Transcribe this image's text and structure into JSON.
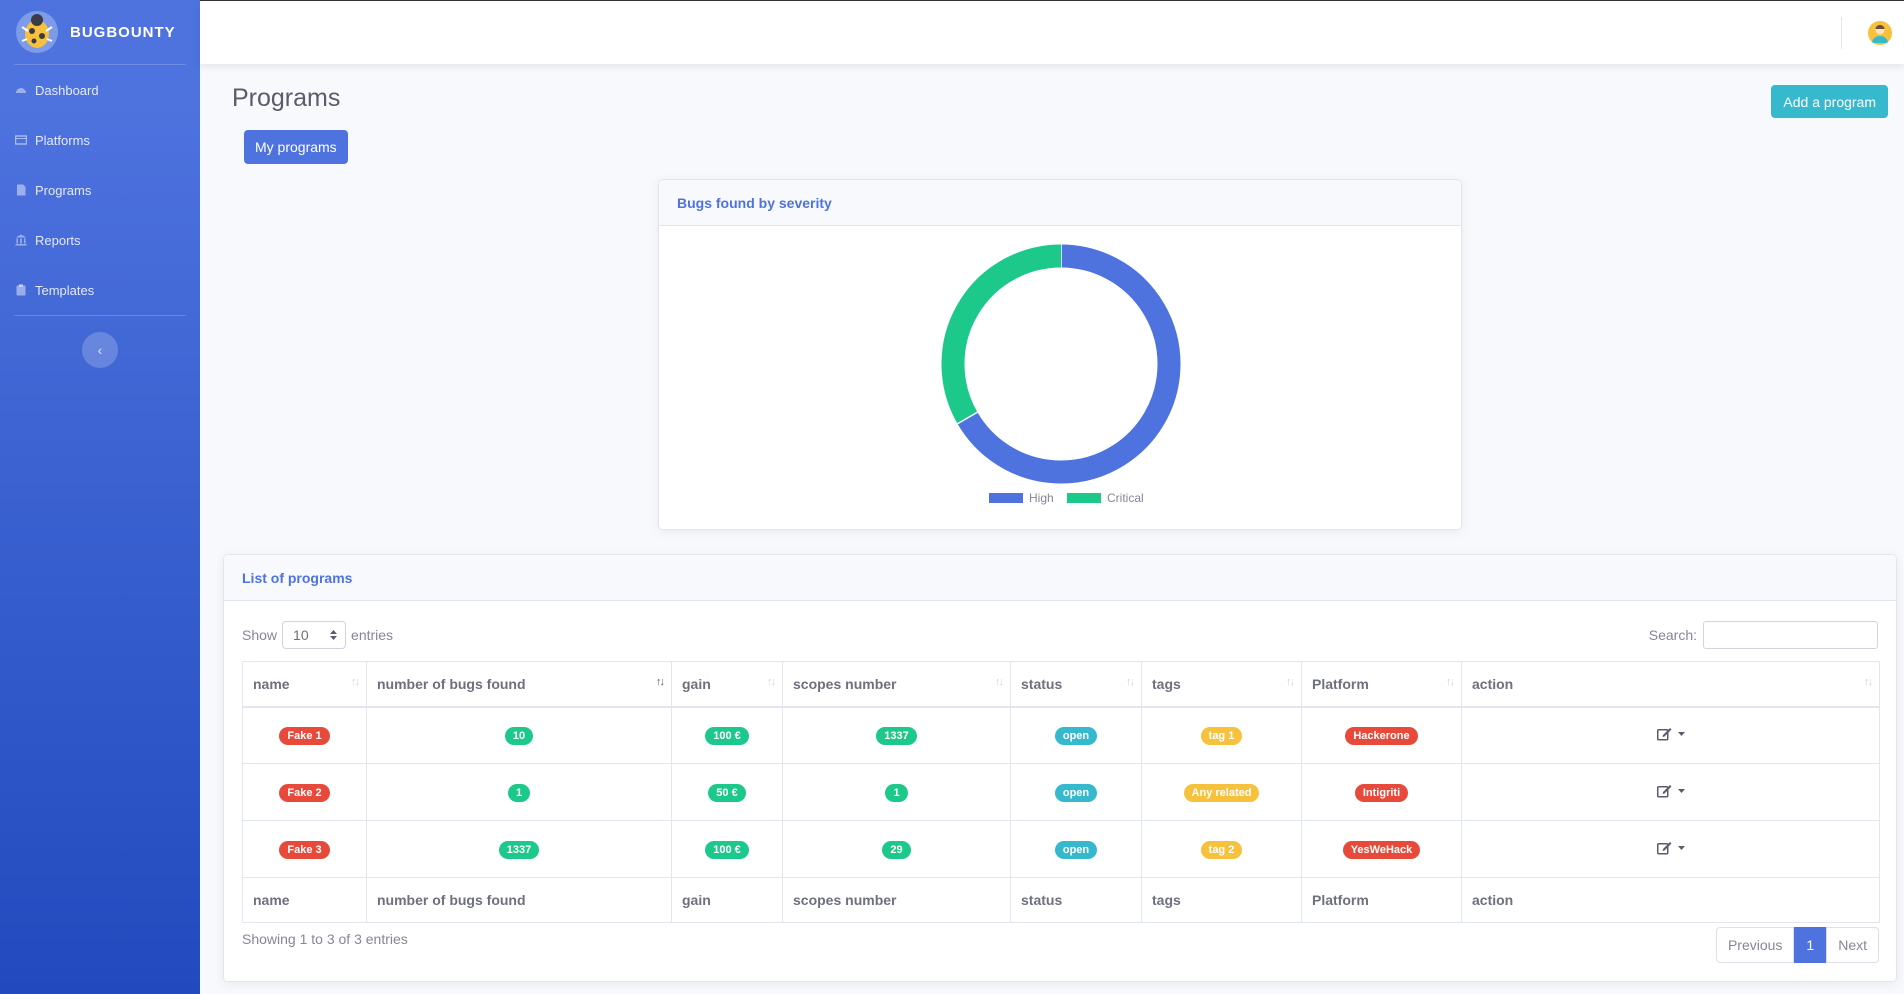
{
  "sidebar": {
    "brand": "BUGBOUNTY",
    "items": [
      {
        "label": "Dashboard",
        "icon": "tachometer-icon"
      },
      {
        "label": "Platforms",
        "icon": "window-icon"
      },
      {
        "label": "Programs",
        "icon": "file-icon"
      },
      {
        "label": "Reports",
        "icon": "bank-icon"
      },
      {
        "label": "Templates",
        "icon": "clipboard-icon"
      }
    ],
    "toggle": "‹"
  },
  "page": {
    "title": "Programs",
    "add_button": "Add a program",
    "my_programs_button": "My programs"
  },
  "chart_card": {
    "title": "Bugs found by severity"
  },
  "chart_data": {
    "type": "pie",
    "title": "Bugs found by severity",
    "categories": [
      "High",
      "Critical"
    ],
    "values": [
      2,
      1
    ],
    "colors": [
      "#4e73df",
      "#1cc88a"
    ],
    "donut": true
  },
  "table_card": {
    "title": "List of programs",
    "show_label": "Show",
    "page_size": "10",
    "entries_label": "entries",
    "search_label": "Search:",
    "search_value": "",
    "columns": [
      "name",
      "number of bugs found",
      "gain",
      "scopes number",
      "status",
      "tags",
      "Platform",
      "action"
    ],
    "rows": [
      {
        "name": "Fake 1",
        "bugs": "10",
        "gain": "100 €",
        "scopes": "1337",
        "status": "open",
        "tags": "tag 1",
        "platform": "Hackerone"
      },
      {
        "name": "Fake 2",
        "bugs": "1",
        "gain": "50 €",
        "scopes": "1",
        "status": "open",
        "tags": "Any related",
        "platform": "Intigriti"
      },
      {
        "name": "Fake 3",
        "bugs": "1337",
        "gain": "100 €",
        "scopes": "29",
        "status": "open",
        "tags": "tag 2",
        "platform": "YesWeHack"
      }
    ],
    "info": "Showing 1 to 3 of 3 entries",
    "pagination": {
      "previous": "Previous",
      "current": "1",
      "next": "Next"
    }
  }
}
